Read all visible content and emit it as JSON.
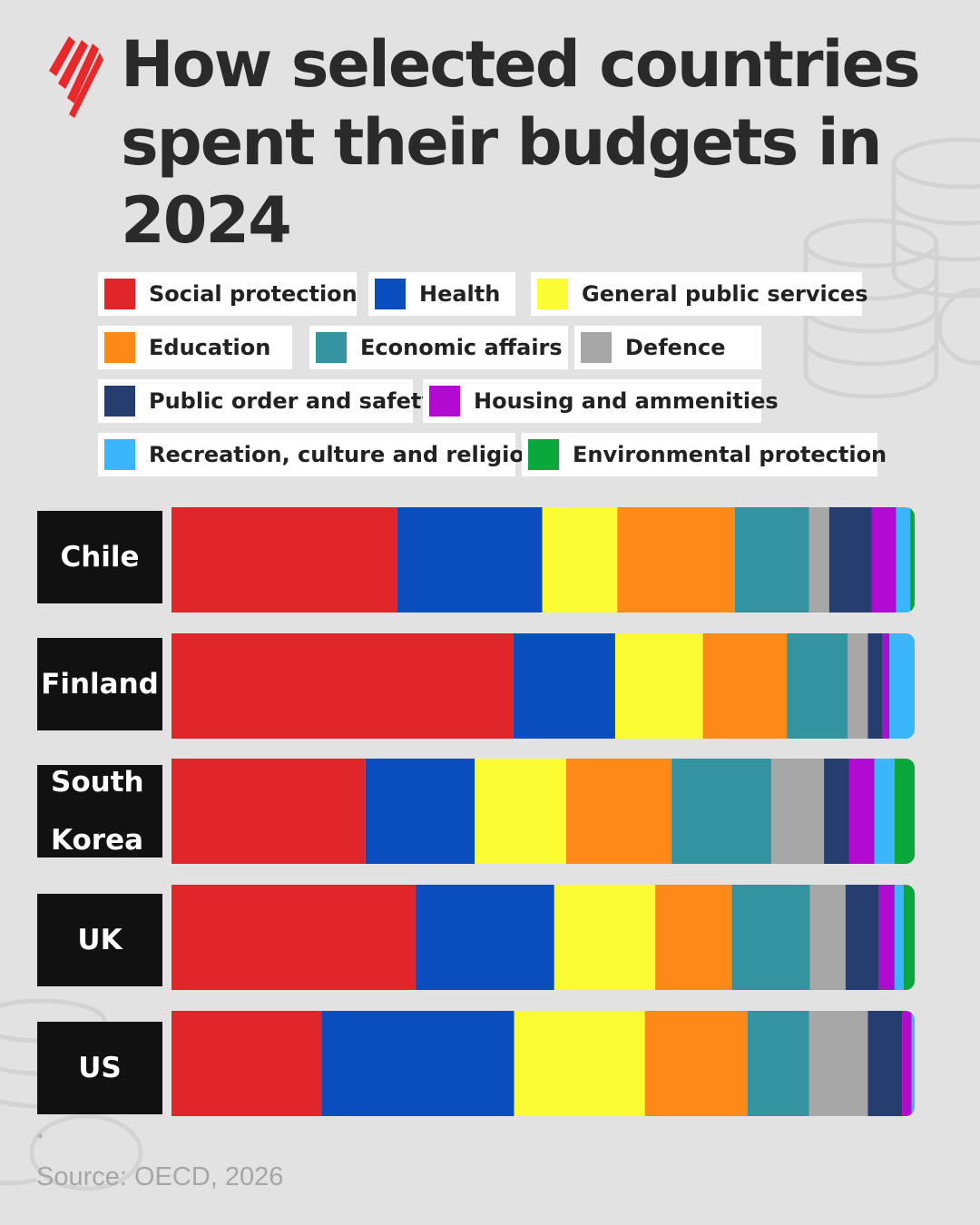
{
  "title": "How selected countries spent their budgets in 2024",
  "legend": [
    {
      "label": "Social protection",
      "color": "#e0262a"
    },
    {
      "label": "Health",
      "color": "#0a4dbf"
    },
    {
      "label": "General public services",
      "color": "#fcfc34"
    },
    {
      "label": "Education",
      "color": "#fd8a16"
    },
    {
      "label": "Economic affairs",
      "color": "#33939f"
    },
    {
      "label": "Defence",
      "color": "#a7a7a7"
    },
    {
      "label": "Public order and safety",
      "color": "#253d6f"
    },
    {
      "label": "Housing and ammenities",
      "color": "#b10bd2"
    },
    {
      "label": "Recreation, culture and religion",
      "color": "#3ab6fc"
    },
    {
      "label": "Environmental protection",
      "color": "#0aa83a"
    }
  ],
  "chart_data": {
    "type": "bar",
    "orientation": "horizontal",
    "stacked": true,
    "normalized_to": 100,
    "unit": "%",
    "categories": [
      "Chile",
      "Finland",
      "South Korea",
      "UK",
      "US"
    ],
    "series": [
      {
        "name": "Social protection",
        "color": "#e0262a",
        "values": [
          30.4,
          46.0,
          26.1,
          32.9,
          20.2
        ]
      },
      {
        "name": "Health",
        "color": "#0a4dbf",
        "values": [
          19.5,
          13.7,
          14.7,
          18.6,
          25.9
        ]
      },
      {
        "name": "General public services",
        "color": "#fcfc34",
        "values": [
          10.1,
          11.8,
          12.3,
          13.6,
          17.6
        ]
      },
      {
        "name": "Education",
        "color": "#fd8a16",
        "values": [
          15.8,
          11.3,
          14.2,
          10.3,
          13.8
        ]
      },
      {
        "name": "Economic affairs",
        "color": "#33939f",
        "values": [
          10.0,
          8.2,
          13.4,
          10.5,
          8.3
        ]
      },
      {
        "name": "Defence",
        "color": "#a7a7a7",
        "values": [
          2.7,
          2.7,
          7.1,
          4.8,
          7.9
        ]
      },
      {
        "name": "Public order and safety",
        "color": "#253d6f",
        "values": [
          5.7,
          2.0,
          3.4,
          4.5,
          4.6
        ]
      },
      {
        "name": "Housing and ammenities",
        "color": "#b10bd2",
        "values": [
          3.3,
          0.9,
          3.4,
          2.1,
          1.3
        ]
      },
      {
        "name": "Recreation, culture and religion",
        "color": "#3ab6fc",
        "values": [
          1.9,
          3.4,
          2.7,
          1.2,
          0.4
        ]
      },
      {
        "name": "Environmental protection",
        "color": "#0aa83a",
        "values": [
          0.6,
          0.0,
          2.7,
          1.5,
          0.0
        ]
      }
    ]
  },
  "country_labels": [
    {
      "lines": [
        "Chile"
      ]
    },
    {
      "lines": [
        "Finland"
      ]
    },
    {
      "lines": [
        "South",
        "Korea"
      ]
    },
    {
      "lines": [
        "UK"
      ]
    },
    {
      "lines": [
        "US"
      ]
    }
  ],
  "footnote": "*",
  "source": "Source: OECD, 2026"
}
